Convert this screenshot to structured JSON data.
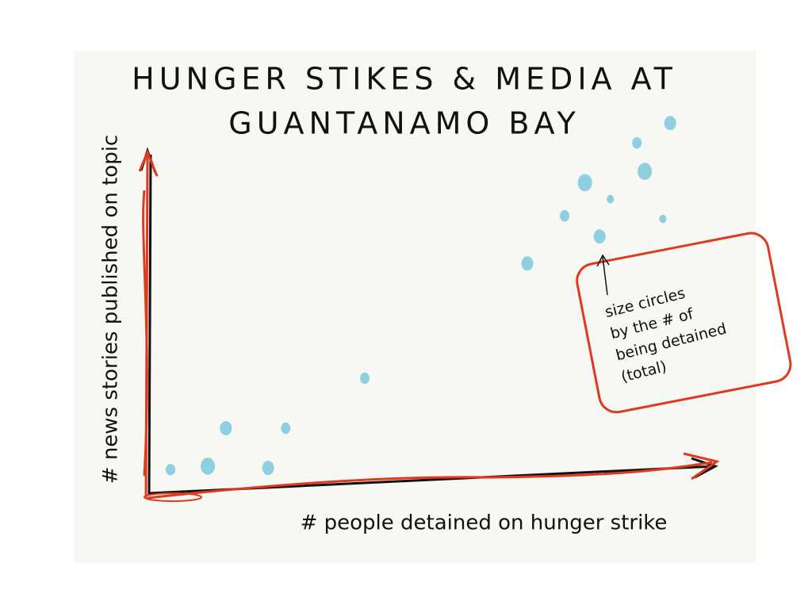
{
  "chart_data": {
    "type": "scatter",
    "title": [
      "HUNGER STIKES & MEDIA AT",
      "GUANTANAMO BAY"
    ],
    "xlabel": "# people detained on hunger strike",
    "ylabel": "# news stories published on topic",
    "annotation": [
      "size circles",
      "by the # of",
      "being detained",
      "(total)"
    ],
    "xlim": [
      0,
      100
    ],
    "ylim": [
      0,
      110
    ],
    "color": "#8fd0e0",
    "series": [
      {
        "x": [
          3.8,
          10.4,
          13.6,
          21.1,
          24.2,
          38.2,
          67.0,
          73.6,
          77.2,
          79.8,
          81.7,
          86.4,
          87.8,
          91.0,
          92.3
        ],
        "values": [
          6.9,
          7.9,
          19.0,
          7.4,
          19.0,
          33.6,
          67.1,
          81.0,
          90.7,
          75.0,
          85.9,
          102.3,
          94.0,
          80.1,
          108.1
        ],
        "sizes": [
          2,
          3,
          2.5,
          2.5,
          2,
          2,
          2.5,
          2,
          3,
          2.5,
          1.5,
          2,
          3,
          1.5,
          2.5
        ]
      }
    ]
  }
}
